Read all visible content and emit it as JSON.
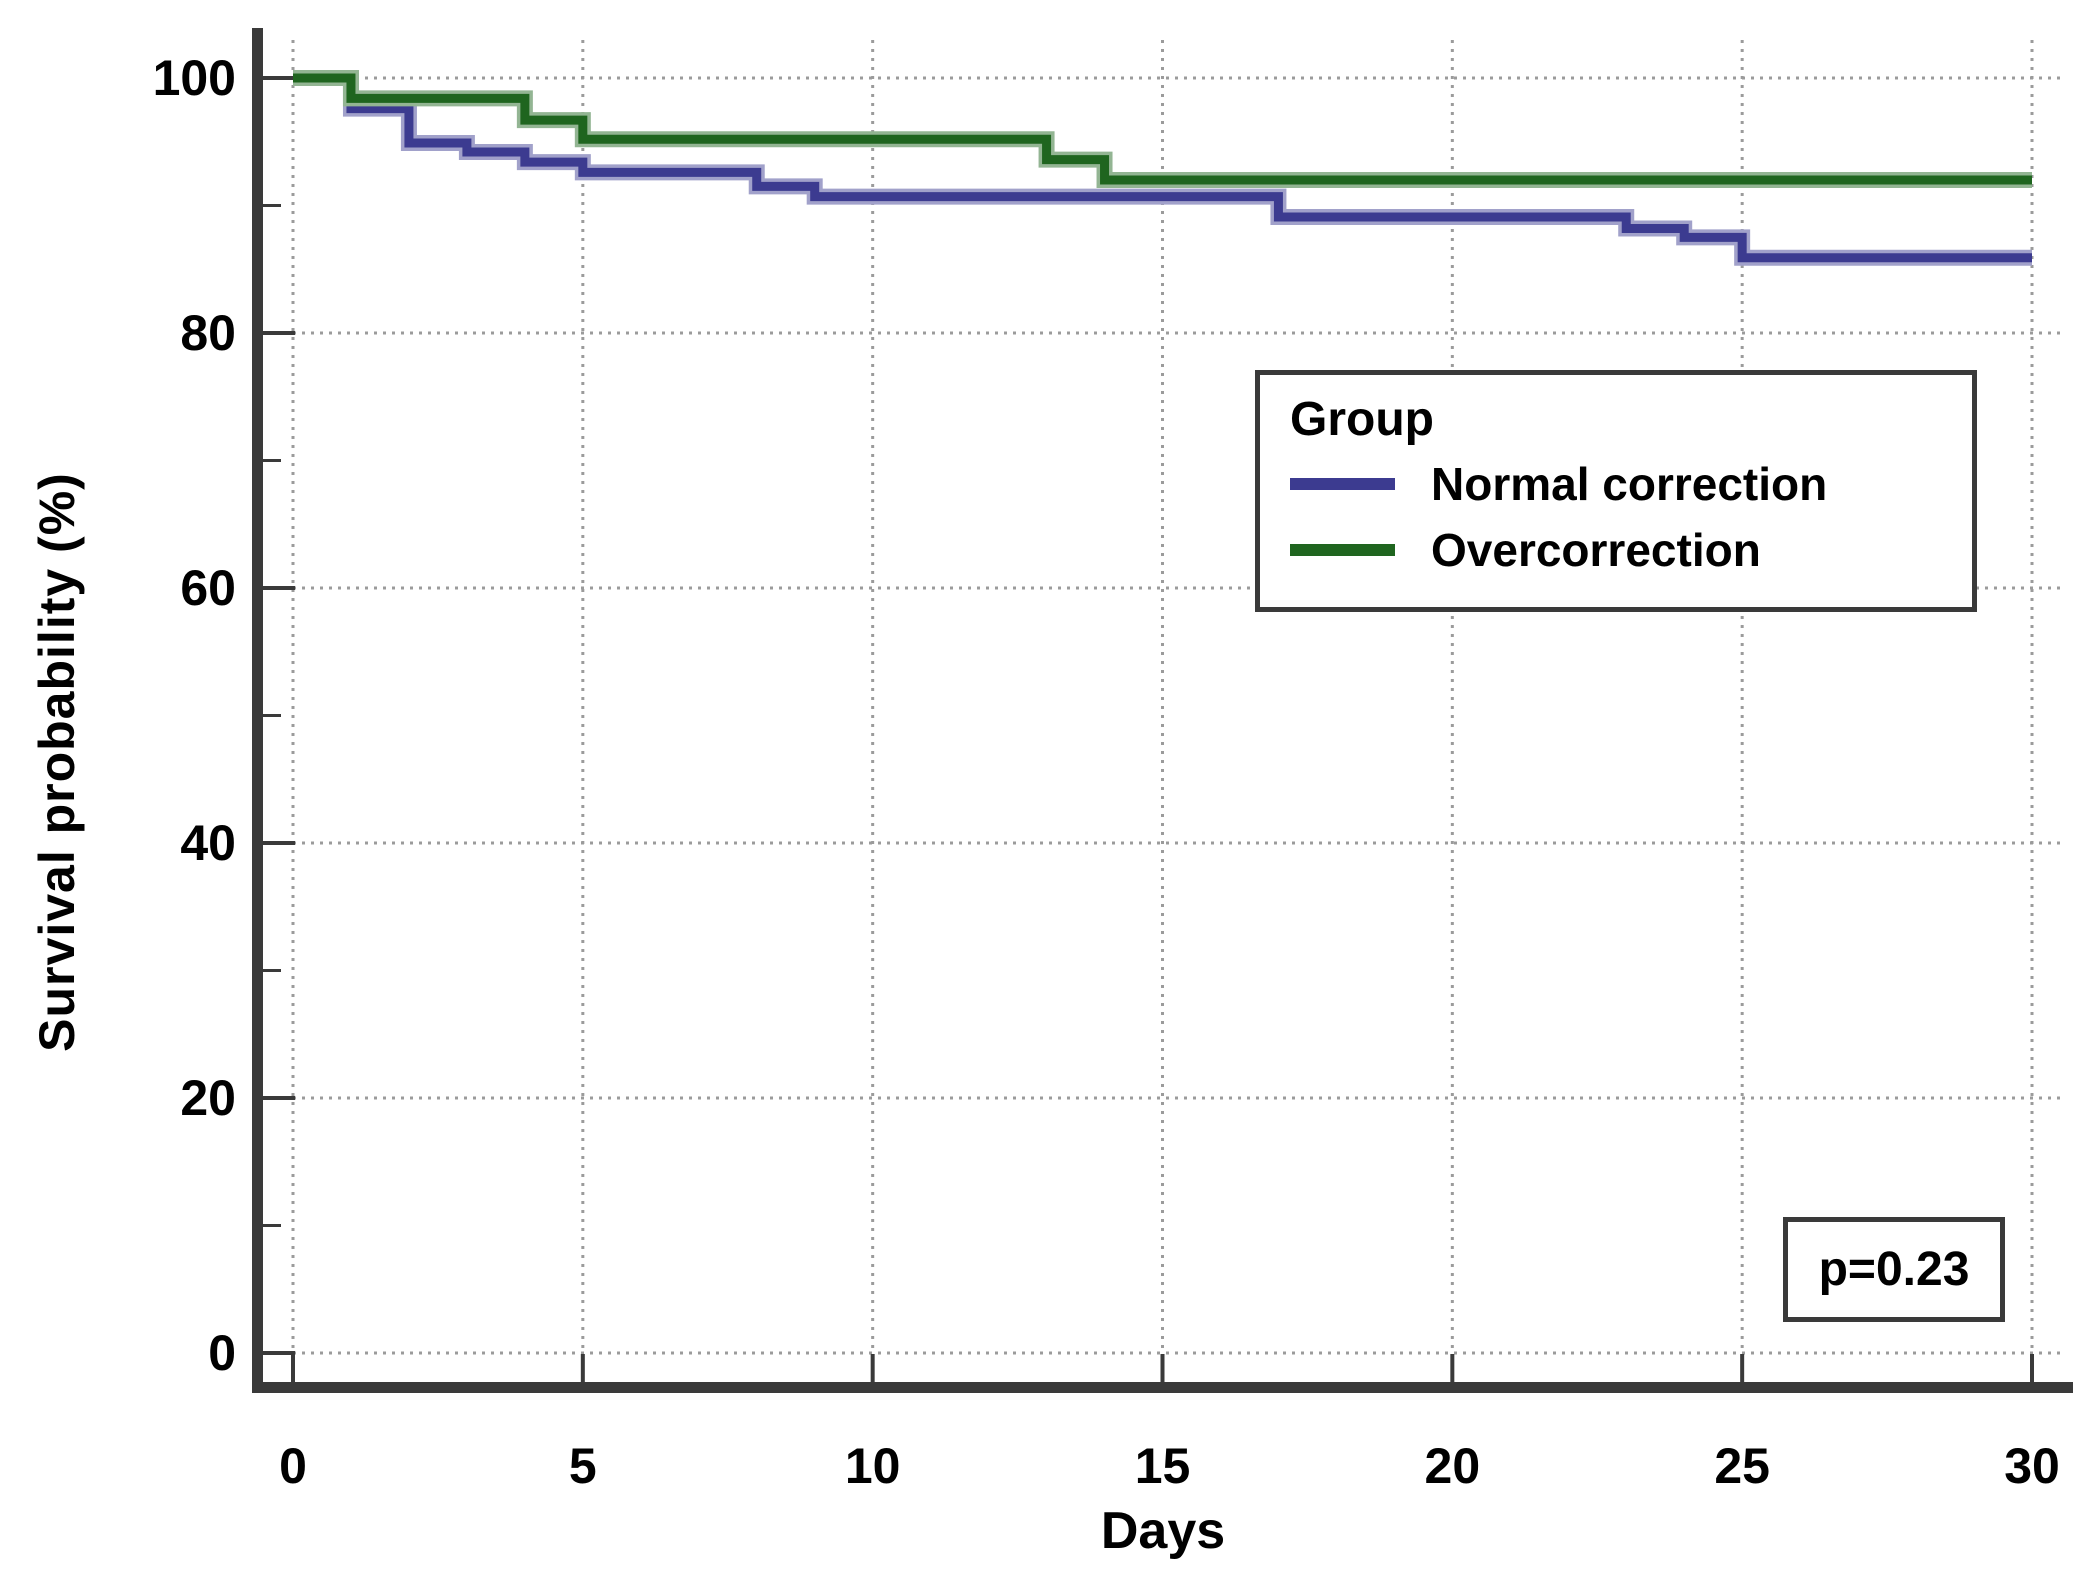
{
  "figure": {
    "y_axis_title": "Survival probability (%)",
    "x_axis_title": "Days",
    "p_value_label": "p=0.23"
  },
  "legend": {
    "title": "Group",
    "items": [
      {
        "label": "Normal correction",
        "color": "#3c3b90"
      },
      {
        "label": "Overcorrection",
        "color": "#1f651f"
      }
    ]
  },
  "chart_data": {
    "type": "line",
    "subtype": "kaplan_meier_step",
    "title": "",
    "xlabel": "Days",
    "ylabel": "Survival probability (%)",
    "xlim": [
      0,
      30
    ],
    "ylim": [
      0,
      100
    ],
    "x_ticks": [
      0,
      5,
      10,
      15,
      20,
      25,
      30
    ],
    "y_ticks": [
      0,
      20,
      40,
      60,
      80,
      100
    ],
    "y_minor_ticks": [
      10,
      30,
      50,
      70,
      90
    ],
    "grid": "dotted_major_both_axes",
    "legend_position": "upper_right_inside",
    "annotation": "p=0.23",
    "series": [
      {
        "name": "Normal correction",
        "color": "#3c3b90",
        "steps": [
          [
            0,
            100
          ],
          [
            1,
            97.6
          ],
          [
            2,
            94.9
          ],
          [
            3,
            94.2
          ],
          [
            4,
            93.4
          ],
          [
            5,
            92.6
          ],
          [
            8,
            91.5
          ],
          [
            9,
            90.7
          ],
          [
            17,
            89.1
          ],
          [
            23,
            88.2
          ],
          [
            24,
            87.5
          ],
          [
            25,
            85.9
          ],
          [
            30,
            85.9
          ]
        ]
      },
      {
        "name": "Overcorrection",
        "color": "#1f651f",
        "steps": [
          [
            0,
            100
          ],
          [
            1,
            98.4
          ],
          [
            4,
            96.7
          ],
          [
            5,
            95.2
          ],
          [
            13,
            93.6
          ],
          [
            14,
            92.0
          ],
          [
            30,
            92.0
          ]
        ]
      }
    ]
  }
}
